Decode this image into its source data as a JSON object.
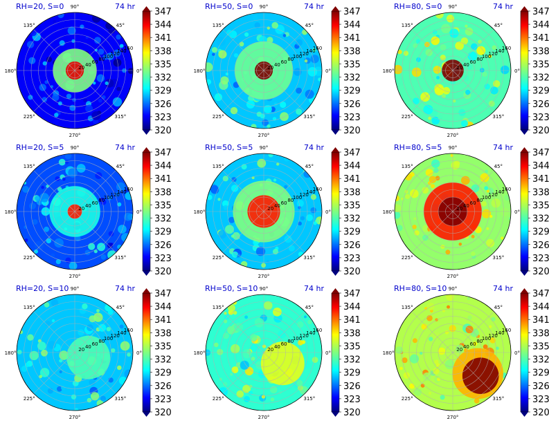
{
  "figure": {
    "time_label": "74 hr",
    "colorbar_ticks": [
      "347",
      "344",
      "341",
      "338",
      "335",
      "332",
      "329",
      "326",
      "323",
      "320"
    ],
    "angle_labels": [
      "90°",
      "45°",
      "0°",
      "315°",
      "270°",
      "225°",
      "180°",
      "135°"
    ],
    "radial_labels": [
      "20",
      "40",
      "60",
      "80",
      "100",
      "120",
      "140",
      "160"
    ]
  },
  "chart_data": [
    {
      "type": "heatmap",
      "title": "RH=20, S=0",
      "time": "74 hr",
      "colorbar": {
        "min": 320,
        "max": 347,
        "ticks": [
          347,
          344,
          341,
          338,
          335,
          332,
          329,
          326,
          323,
          320
        ]
      },
      "axes": {
        "projection": "polar",
        "angles_deg": [
          90,
          45,
          0,
          315,
          270,
          225,
          180,
          135
        ],
        "radii": [
          20,
          40,
          60,
          80,
          100,
          120,
          140,
          160
        ]
      },
      "grid": true,
      "background_level": 0.12,
      "features": [
        {
          "azimuth_deg": 0,
          "radius": 0,
          "level": 0.9,
          "extent": 25
        },
        {
          "azimuth_deg": 0,
          "radius": 0,
          "level": 0.5,
          "extent": 60
        }
      ]
    },
    {
      "type": "heatmap",
      "title": "RH=50, S=0",
      "time": "74 hr",
      "colorbar": {
        "min": 320,
        "max": 347,
        "ticks": [
          347,
          344,
          341,
          338,
          335,
          332,
          329,
          326,
          323,
          320
        ]
      },
      "axes": {
        "projection": "polar",
        "angles_deg": [
          90,
          45,
          0,
          315,
          270,
          225,
          180,
          135
        ],
        "radii": [
          20,
          40,
          60,
          80,
          100,
          120,
          140,
          160
        ]
      },
      "grid": true,
      "background_level": 0.32,
      "features": [
        {
          "azimuth_deg": 0,
          "radius": 0,
          "level": 1.0,
          "extent": 25
        },
        {
          "azimuth_deg": 0,
          "radius": 0,
          "level": 0.48,
          "extent": 80
        }
      ]
    },
    {
      "type": "heatmap",
      "title": "RH=80, S=0",
      "time": "74 hr",
      "colorbar": {
        "min": 320,
        "max": 347,
        "ticks": [
          347,
          344,
          341,
          338,
          335,
          332,
          329,
          326,
          323,
          320
        ]
      },
      "axes": {
        "projection": "polar",
        "angles_deg": [
          90,
          45,
          0,
          315,
          270,
          225,
          180,
          135
        ],
        "radii": [
          20,
          40,
          60,
          80,
          100,
          120,
          140,
          160
        ]
      },
      "grid": true,
      "background_level": 0.45,
      "features": [
        {
          "azimuth_deg": 0,
          "radius": 0,
          "level": 1.0,
          "extent": 30
        }
      ]
    },
    {
      "type": "heatmap",
      "title": "RH=20, S=5",
      "time": "74 hr",
      "colorbar": {
        "min": 320,
        "max": 347,
        "ticks": [
          347,
          344,
          341,
          338,
          335,
          332,
          329,
          326,
          323,
          320
        ]
      },
      "axes": {
        "projection": "polar",
        "angles_deg": [
          90,
          45,
          0,
          315,
          270,
          225,
          180,
          135
        ],
        "radii": [
          20,
          40,
          60,
          80,
          100,
          120,
          140,
          160
        ]
      },
      "grid": true,
      "background_level": 0.2,
      "features": [
        {
          "azimuth_deg": 0,
          "radius": 0,
          "level": 0.85,
          "extent": 20
        },
        {
          "azimuth_deg": 0,
          "radius": 0,
          "level": 0.4,
          "extent": 70
        }
      ]
    },
    {
      "type": "heatmap",
      "title": "RH=50, S=5",
      "time": "74 hr",
      "colorbar": {
        "min": 320,
        "max": 347,
        "ticks": [
          347,
          344,
          341,
          338,
          335,
          332,
          329,
          326,
          323,
          320
        ]
      },
      "axes": {
        "projection": "polar",
        "angles_deg": [
          90,
          45,
          0,
          315,
          270,
          225,
          180,
          135
        ],
        "radii": [
          20,
          40,
          60,
          80,
          100,
          120,
          140,
          160
        ]
      },
      "grid": true,
      "background_level": 0.32,
      "features": [
        {
          "azimuth_deg": 0,
          "radius": 0,
          "level": 0.85,
          "extent": 45
        },
        {
          "azimuth_deg": 0,
          "radius": 0,
          "level": 0.5,
          "extent": 85
        }
      ]
    },
    {
      "type": "heatmap",
      "title": "RH=80, S=5",
      "time": "74 hr",
      "colorbar": {
        "min": 320,
        "max": 347,
        "ticks": [
          347,
          344,
          341,
          338,
          335,
          332,
          329,
          326,
          323,
          320
        ]
      },
      "axes": {
        "projection": "polar",
        "angles_deg": [
          90,
          45,
          0,
          315,
          270,
          225,
          180,
          135
        ],
        "radii": [
          20,
          40,
          60,
          80,
          100,
          120,
          140,
          160
        ]
      },
      "grid": true,
      "background_level": 0.52,
      "features": [
        {
          "azimuth_deg": 0,
          "radius": 0,
          "level": 1.0,
          "extent": 40
        },
        {
          "azimuth_deg": 0,
          "radius": 0,
          "level": 0.85,
          "extent": 80
        }
      ]
    },
    {
      "type": "heatmap",
      "title": "RH=20, S=10",
      "time": "74 hr",
      "colorbar": {
        "min": 320,
        "max": 347,
        "ticks": [
          347,
          344,
          341,
          338,
          335,
          332,
          329,
          326,
          323,
          320
        ]
      },
      "axes": {
        "projection": "polar",
        "angles_deg": [
          90,
          45,
          0,
          315,
          270,
          225,
          180,
          135
        ],
        "radii": [
          20,
          40,
          60,
          80,
          100,
          120,
          140,
          160
        ]
      },
      "grid": true,
      "background_level": 0.32,
      "features": [
        {
          "azimuth_deg": -20,
          "radius": 40,
          "level": 0.45,
          "extent": 60
        }
      ]
    },
    {
      "type": "heatmap",
      "title": "RH=50, S=10",
      "time": "74 hr",
      "colorbar": {
        "min": 320,
        "max": 347,
        "ticks": [
          347,
          344,
          341,
          338,
          335,
          332,
          329,
          326,
          323,
          320
        ]
      },
      "axes": {
        "projection": "polar",
        "angles_deg": [
          90,
          45,
          0,
          315,
          270,
          225,
          180,
          135
        ],
        "radii": [
          20,
          40,
          60,
          80,
          100,
          120,
          140,
          160
        ]
      },
      "grid": true,
      "background_level": 0.42,
      "features": [
        {
          "azimuth_deg": -30,
          "radius": 60,
          "level": 0.6,
          "extent": 60
        }
      ]
    },
    {
      "type": "heatmap",
      "title": "RH=80, S=10",
      "time": "74 hr",
      "colorbar": {
        "min": 320,
        "max": 347,
        "ticks": [
          347,
          344,
          341,
          338,
          335,
          332,
          329,
          326,
          323,
          320
        ]
      },
      "axes": {
        "projection": "polar",
        "angles_deg": [
          90,
          45,
          0,
          315,
          270,
          225,
          180,
          135
        ],
        "radii": [
          20,
          40,
          60,
          80,
          100,
          120,
          140,
          160
        ]
      },
      "grid": true,
      "background_level": 0.55,
      "features": [
        {
          "azimuth_deg": -40,
          "radius": 100,
          "level": 1.0,
          "extent": 50
        },
        {
          "azimuth_deg": -40,
          "radius": 90,
          "level": 0.7,
          "extent": 70
        }
      ]
    }
  ]
}
